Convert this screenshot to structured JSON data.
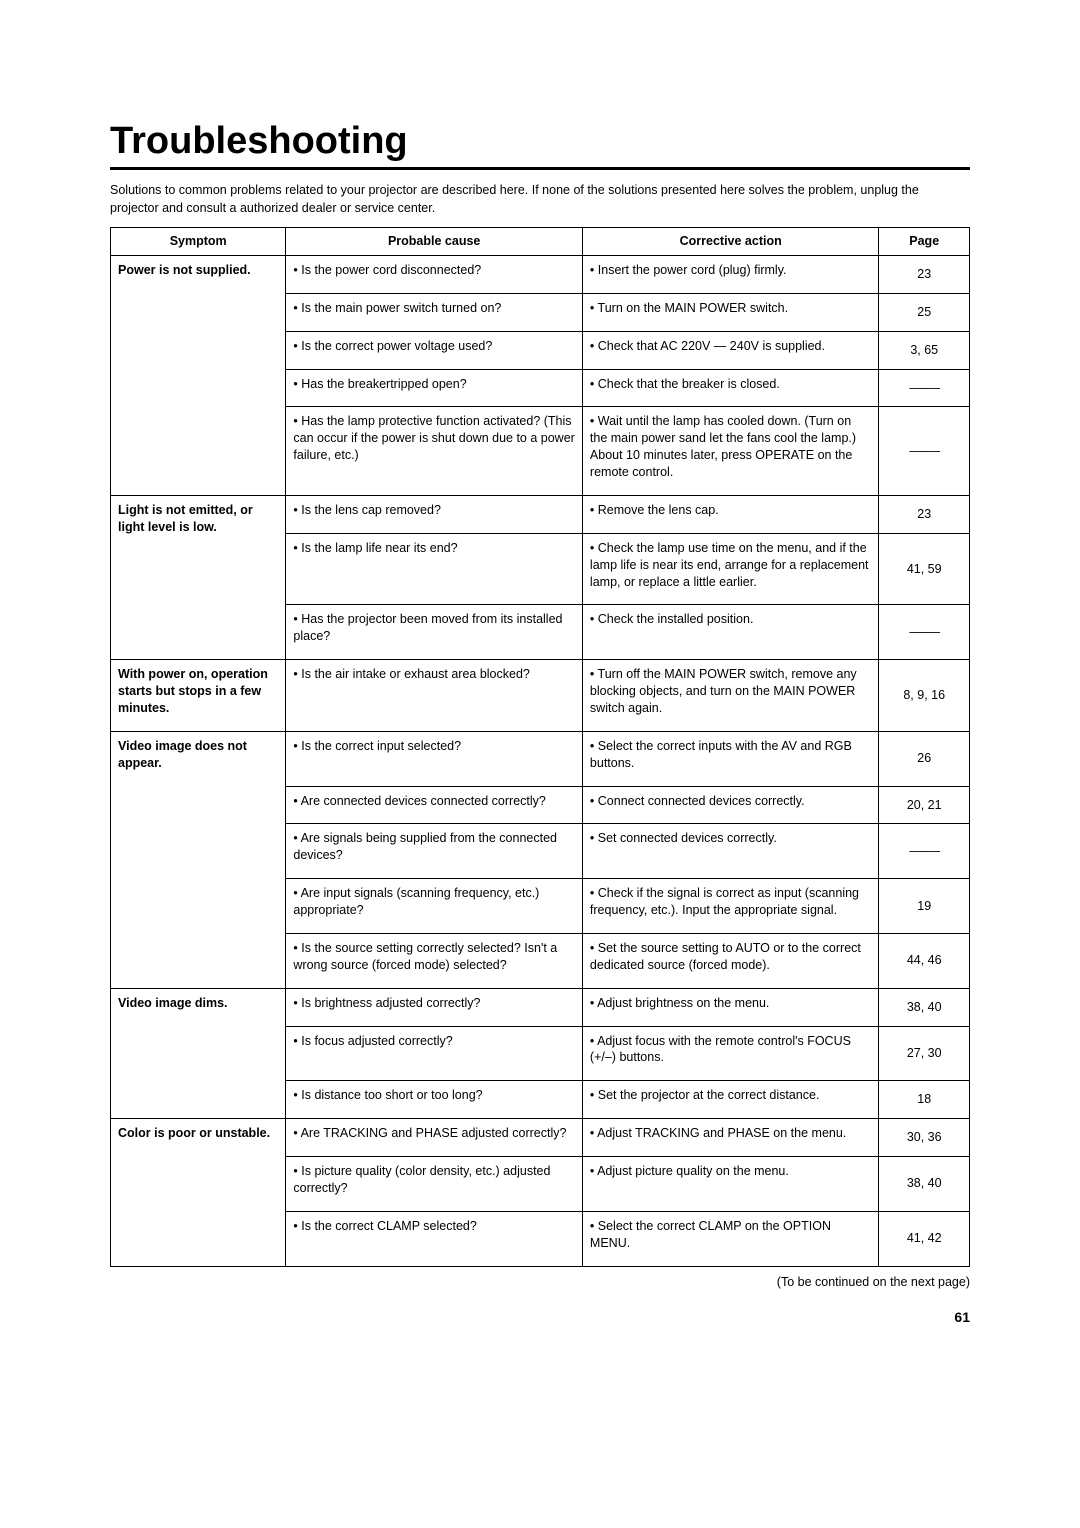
{
  "title": "Troubleshooting",
  "intro": "Solutions to common problems related to your projector are described here. If none of the solutions presented here solves the problem, unplug the projector and consult a authorized dealer or service center.",
  "headers": {
    "symptom": "Symptom",
    "cause": "Probable cause",
    "action": "Corrective action",
    "page": "Page"
  },
  "symptoms": {
    "power": "Power is not supplied.",
    "light": "Light is not emitted, or light level is low.",
    "withpower": "With power on, operation starts but stops in a few minutes.",
    "video_notappear": "Video image does not appear.",
    "video_dims": "Video image dims.",
    "color": "Color is poor or unstable."
  },
  "rows": {
    "r1": {
      "cause": "• Is the power cord disconnected?",
      "action": "• Insert the power cord (plug) firmly.",
      "page": "23"
    },
    "r2": {
      "cause": "• Is the main power switch turned on?",
      "action": "• Turn on the MAIN POWER switch.",
      "page": "25"
    },
    "r3": {
      "cause": "• Is the correct power voltage used?",
      "action": "• Check that AC 220V — 240V is supplied.",
      "page": "3, 65"
    },
    "r4": {
      "cause": "• Has the breakertripped open?",
      "action": "• Check that the breaker is closed.",
      "page": "–––––"
    },
    "r5": {
      "cause": "• Has the lamp protective function activated? (This can occur if the power is shut down due to a power failure, etc.)",
      "action": "• Wait until the lamp has cooled down. (Turn on the main power sand let the fans cool the lamp.)\nAbout 10 minutes later, press OPERATE on the remote control.",
      "page": "–––––"
    },
    "r6": {
      "cause": "• Is the lens cap removed?",
      "action": "• Remove the lens cap.",
      "page": "23"
    },
    "r7": {
      "cause": "• Is the lamp life near its end?",
      "action": "• Check the lamp use time on the menu, and if the lamp life is near its end, arrange for a replacement lamp, or replace a little earlier.",
      "page": "41, 59"
    },
    "r8": {
      "cause": "• Has the projector been moved from its installed place?",
      "action": "• Check the installed position.",
      "page": "–––––"
    },
    "r9": {
      "cause": "• Is the air intake or exhaust area blocked?",
      "action": "• Turn off the MAIN POWER switch, remove any blocking objects, and turn on the MAIN POWER switch again.",
      "page": "8, 9, 16"
    },
    "r10": {
      "cause": "• Is the correct input selected?",
      "action": "• Select the correct inputs with the AV and RGB buttons.",
      "page": "26"
    },
    "r11": {
      "cause": "• Are connected devices connected correctly?",
      "action": "• Connect connected devices correctly.",
      "page": "20, 21"
    },
    "r12": {
      "cause": "• Are signals being supplied from the connected devices?",
      "action": "• Set connected devices correctly.",
      "page": "–––––"
    },
    "r13": {
      "cause": "• Are input signals (scanning frequency, etc.) appropriate?",
      "action": "• Check if the signal is correct as input (scanning frequency, etc.).\nInput the appropriate signal.",
      "page": "19"
    },
    "r14": {
      "cause": "• Is the source setting correctly selected? Isn't a wrong source (forced mode) selected?",
      "action": "• Set the source setting to AUTO or to the correct dedicated source (forced mode).",
      "page": "44, 46"
    },
    "r15": {
      "cause": "• Is brightness adjusted correctly?",
      "action": "• Adjust brightness on the menu.",
      "page": "38, 40"
    },
    "r16": {
      "cause": "• Is focus adjusted correctly?",
      "action": "• Adjust focus with the remote control's FOCUS (+/–) buttons.",
      "page": "27, 30"
    },
    "r17": {
      "cause": "• Is distance too short or too long?",
      "action": "• Set the projector at the correct distance.",
      "page": "18"
    },
    "r18": {
      "cause": "• Are TRACKING and PHASE adjusted correctly?",
      "action": "• Adjust TRACKING and PHASE on the menu.",
      "page": "30, 36"
    },
    "r19": {
      "cause": "• Is picture quality (color density, etc.) adjusted correctly?",
      "action": "• Adjust picture quality on the menu.",
      "page": "38, 40"
    },
    "r20": {
      "cause": "• Is the correct CLAMP selected?",
      "action": "• Select the correct CLAMP on the OPTION MENU.",
      "page": "41, 42"
    }
  },
  "footnote": "(To be continued on the next page)",
  "pagenum": "61",
  "dash": "–––––"
}
